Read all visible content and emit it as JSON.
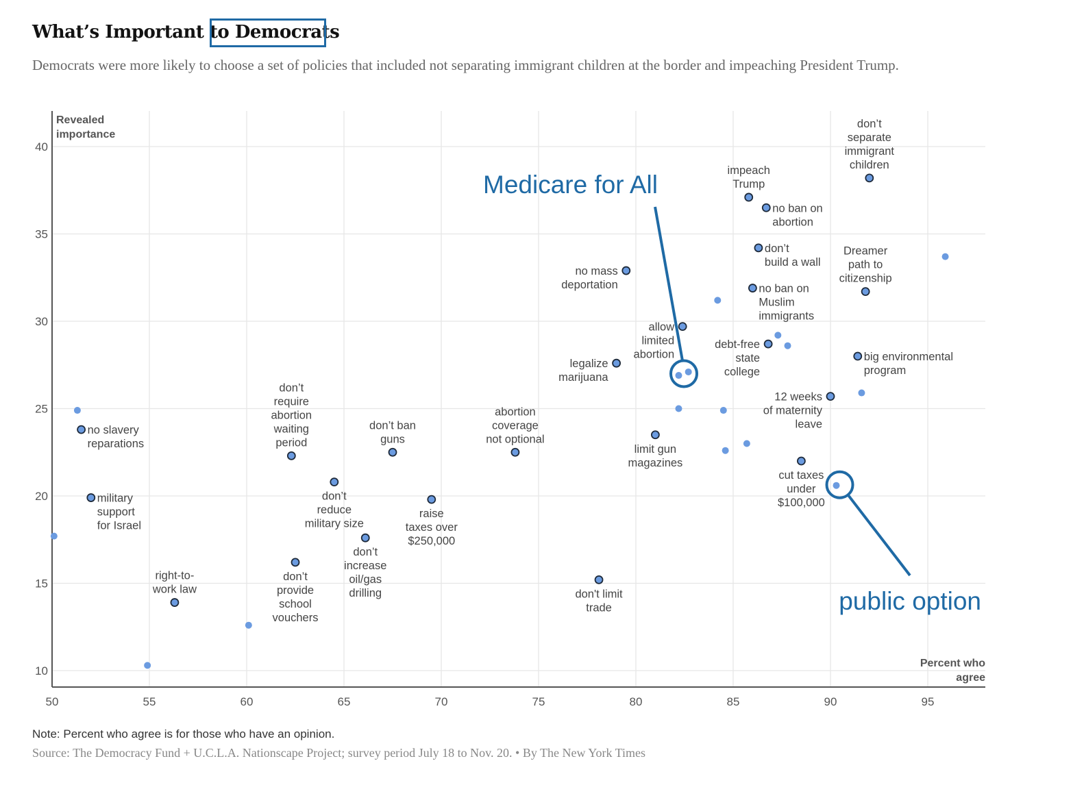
{
  "header": {
    "title": "What’s Important to Democrats",
    "subtitle": "Democrats were more likely to choose a set of policies that included not separating immigrant children at the border and impeaching President Trump."
  },
  "footer": {
    "note": "Note: Percent who agree is for those who have an opinion.",
    "source": "Source: The Democracy Fund + U.C.L.A. Nationscape Project; survey period July 18 to Nov. 20. • By The New York Times"
  },
  "colors": {
    "point_fill": "#6b9be0",
    "point_stroke": "#1e2a3a",
    "highlight_fill": "#6b9be0",
    "annotation": "#1f6aa5",
    "grid": "#e6e6e6",
    "axis": "#555555"
  },
  "chart_data": {
    "type": "scatter",
    "title": "What’s Important to Democrats",
    "xlabel": "Percent who agree",
    "ylabel": "Revealed importance",
    "xlim": [
      50,
      98
    ],
    "ylim": [
      9,
      42
    ],
    "xticks": [
      50,
      55,
      60,
      65,
      70,
      75,
      80,
      85,
      90,
      95
    ],
    "yticks": [
      10,
      15,
      20,
      25,
      30,
      35,
      40
    ],
    "grid": true,
    "series": [
      {
        "name": "labeled policies",
        "style": "outlined",
        "points": [
          {
            "x": 51.5,
            "y": 23.8,
            "label": [
              "no slavery",
              "reparations"
            ],
            "anchor": "right"
          },
          {
            "x": 52.0,
            "y": 19.9,
            "label": [
              "military",
              "support",
              "for Israel"
            ],
            "anchor": "right"
          },
          {
            "x": 56.3,
            "y": 13.9,
            "label": [
              "right-to-",
              "work law"
            ],
            "anchor": "above"
          },
          {
            "x": 62.3,
            "y": 22.3,
            "label": [
              "don’t",
              "require",
              "abortion",
              "waiting",
              "period"
            ],
            "anchor": "above"
          },
          {
            "x": 64.5,
            "y": 20.8,
            "label": [
              "don’t",
              "reduce",
              "military size"
            ],
            "anchor": "below"
          },
          {
            "x": 62.5,
            "y": 16.2,
            "label": [
              "don’t",
              "provide",
              "school",
              "vouchers"
            ],
            "anchor": "below"
          },
          {
            "x": 66.1,
            "y": 17.6,
            "label": [
              "don’t",
              "increase",
              "oil/gas",
              "drilling"
            ],
            "anchor": "below"
          },
          {
            "x": 67.5,
            "y": 22.5,
            "label": [
              "don’t ban",
              "guns"
            ],
            "anchor": "above"
          },
          {
            "x": 69.5,
            "y": 19.8,
            "label": [
              "raise",
              "taxes over",
              "$250,000"
            ],
            "anchor": "below"
          },
          {
            "x": 73.8,
            "y": 22.5,
            "label": [
              "abortion",
              "coverage",
              "not optional"
            ],
            "anchor": "above"
          },
          {
            "x": 78.1,
            "y": 15.2,
            "label": [
              "don't limit",
              "trade"
            ],
            "anchor": "below"
          },
          {
            "x": 79.5,
            "y": 32.9,
            "label": [
              "no mass",
              "deportation"
            ],
            "anchor": "left"
          },
          {
            "x": 79.0,
            "y": 27.6,
            "label": [
              "legalize",
              "marijuana"
            ],
            "anchor": "left"
          },
          {
            "x": 81.0,
            "y": 23.5,
            "label": [
              "limit gun",
              "magazines"
            ],
            "anchor": "below"
          },
          {
            "x": 82.4,
            "y": 29.7,
            "label": [
              "allow",
              "limited",
              "abortion"
            ],
            "anchor": "left"
          },
          {
            "x": 85.8,
            "y": 37.1,
            "label": [
              "impeach",
              "Trump"
            ],
            "anchor": "above"
          },
          {
            "x": 86.7,
            "y": 36.5,
            "label": [
              "no ban on",
              "abortion"
            ],
            "anchor": "right"
          },
          {
            "x": 86.3,
            "y": 34.2,
            "label": [
              "don’t",
              "build a wall"
            ],
            "anchor": "right"
          },
          {
            "x": 86.0,
            "y": 31.9,
            "label": [
              "no ban on",
              "Muslim",
              "immigrants"
            ],
            "anchor": "right"
          },
          {
            "x": 86.8,
            "y": 28.7,
            "label": [
              "debt-free",
              "state",
              "college"
            ],
            "anchor": "left"
          },
          {
            "x": 90.0,
            "y": 25.7,
            "label": [
              "12 weeks",
              "of maternity",
              "leave"
            ],
            "anchor": "left"
          },
          {
            "x": 88.5,
            "y": 22.0,
            "label": [
              "cut taxes",
              "under",
              "$100,000"
            ],
            "anchor": "below"
          },
          {
            "x": 91.4,
            "y": 28.0,
            "label": [
              "big environmental",
              "program"
            ],
            "anchor": "right"
          },
          {
            "x": 92.0,
            "y": 38.2,
            "label": [
              "don’t",
              "separate",
              "immigrant",
              "children"
            ],
            "anchor": "above"
          },
          {
            "x": 91.8,
            "y": 31.7,
            "label": [
              "Dreamer",
              "path to",
              "citizenship"
            ],
            "anchor": "above"
          }
        ]
      },
      {
        "name": "other policies",
        "style": "plain",
        "points": [
          {
            "x": 51.3,
            "y": 24.9
          },
          {
            "x": 50.1,
            "y": 17.7
          },
          {
            "x": 54.9,
            "y": 10.3
          },
          {
            "x": 60.1,
            "y": 12.6
          },
          {
            "x": 84.2,
            "y": 31.2
          },
          {
            "x": 87.3,
            "y": 29.2
          },
          {
            "x": 87.8,
            "y": 28.6
          },
          {
            "x": 82.2,
            "y": 26.9
          },
          {
            "x": 82.7,
            "y": 27.1
          },
          {
            "x": 82.2,
            "y": 25.0
          },
          {
            "x": 84.5,
            "y": 24.9
          },
          {
            "x": 84.6,
            "y": 22.6
          },
          {
            "x": 85.7,
            "y": 23.0
          },
          {
            "x": 91.6,
            "y": 25.9
          },
          {
            "x": 90.3,
            "y": 20.6
          },
          {
            "x": 95.9,
            "y": 33.7
          }
        ]
      }
    ],
    "annotations": [
      {
        "text": "Medicare for All",
        "target": {
          "x": 82.5,
          "y": 27.0
        }
      },
      {
        "text": "public option",
        "target": {
          "x": 90.3,
          "y": 20.6
        }
      }
    ]
  }
}
